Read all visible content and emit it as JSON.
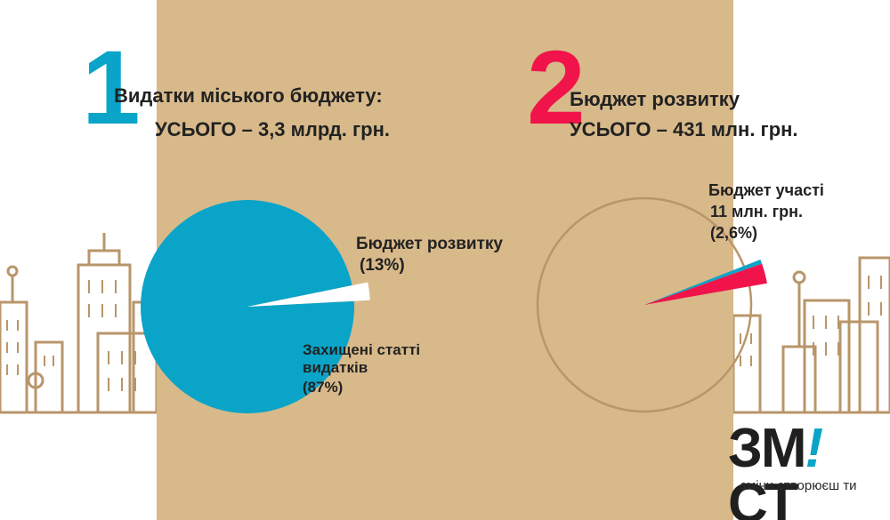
{
  "colors": {
    "panel": "#d8b98a",
    "blue": "#0aa4c8",
    "red": "#f0144a",
    "white": "#ffffff",
    "line_art": "#b8966a",
    "dark": "#222222"
  },
  "icons": [
    "city-skyline-left-icon",
    "city-skyline-right-icon"
  ],
  "chart_data": [
    {
      "type": "pie",
      "number": "1",
      "title": "Видатки міського бюджету:",
      "subtitle": "УСЬОГО – 3,3 млрд. грн.",
      "slices": [
        {
          "label": "Захищені статті видатків",
          "value_text": "(87%)",
          "value": 87,
          "color": "#0aa4c8"
        },
        {
          "label": "Бюджет розвитку",
          "value_text": "(13%)",
          "value": 13,
          "color": "#ffffff"
        }
      ]
    },
    {
      "type": "pie",
      "number": "2",
      "title": "Бюджет розвитку",
      "subtitle": "УСЬОГО – 431 млн. грн.",
      "slices": [
        {
          "label": "Бюджет участі",
          "amount": "11 млн. грн.",
          "value_text": "(2,6%)",
          "value": 2.6,
          "color": "#f0144a"
        }
      ]
    }
  ],
  "logo": {
    "brand_left": "ЗМ",
    "brand_mark": "!",
    "brand_right": "СТ",
    "slogan": "зміни створюєш ти"
  }
}
